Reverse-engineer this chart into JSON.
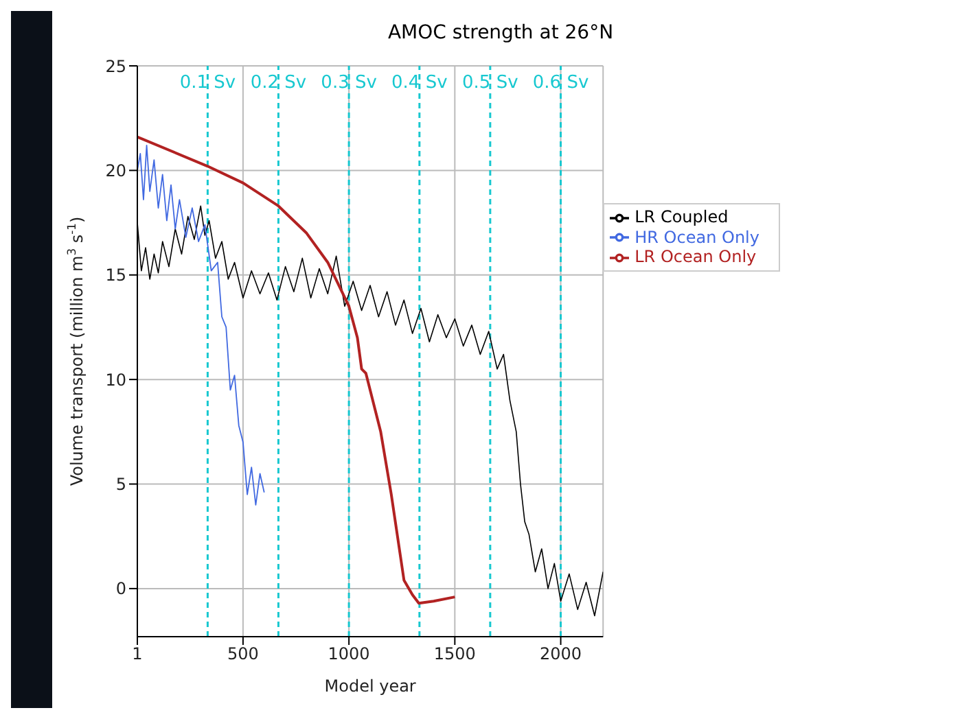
{
  "chart_data": {
    "type": "line",
    "title": "AMOC strength at 26°N",
    "xlabel": "Model year",
    "ylabel": "Volume transport (million m$^{3}$ s$^{-1}$)",
    "xlim": [
      1,
      2200
    ],
    "xticks": [
      1,
      500,
      1000,
      1500,
      2000
    ],
    "ylim": [
      -2.3,
      25
    ],
    "yticks": [
      0,
      5,
      10,
      15,
      20,
      25
    ],
    "grid": true,
    "legend": "top right",
    "series": [
      {
        "name": "LR Coupled",
        "color": "#000000",
        "x": [
          1,
          20,
          40,
          60,
          80,
          100,
          120,
          150,
          180,
          210,
          240,
          270,
          300,
          320,
          340,
          370,
          400,
          430,
          460,
          500,
          540,
          580,
          620,
          660,
          700,
          740,
          780,
          820,
          860,
          900,
          940,
          980,
          1020,
          1060,
          1100,
          1140,
          1180,
          1220,
          1260,
          1300,
          1340,
          1380,
          1420,
          1460,
          1500,
          1540,
          1580,
          1620,
          1660,
          1700,
          1730,
          1760,
          1790,
          1810,
          1830,
          1850,
          1880,
          1910,
          1940,
          1970,
          2000,
          2040,
          2080,
          2120,
          2160,
          2200
        ],
        "values": [
          17.5,
          15.2,
          16.3,
          14.8,
          16.0,
          15.1,
          16.6,
          15.4,
          17.2,
          16.0,
          17.8,
          16.7,
          18.3,
          16.9,
          17.6,
          15.8,
          16.6,
          14.8,
          15.6,
          13.9,
          15.2,
          14.1,
          15.1,
          13.8,
          15.4,
          14.2,
          15.8,
          13.9,
          15.3,
          14.1,
          15.9,
          13.5,
          14.7,
          13.3,
          14.5,
          13.0,
          14.2,
          12.6,
          13.8,
          12.2,
          13.4,
          11.8,
          13.1,
          12.0,
          12.9,
          11.6,
          12.6,
          11.2,
          12.3,
          10.5,
          11.2,
          9.0,
          7.5,
          5.0,
          3.2,
          2.6,
          0.8,
          1.9,
          0.0,
          1.2,
          -0.6,
          0.7,
          -1.0,
          0.3,
          -1.3,
          0.8
        ]
      },
      {
        "name": "HR Ocean Only",
        "color": "#4169e1",
        "x": [
          1,
          15,
          30,
          45,
          60,
          80,
          100,
          120,
          140,
          160,
          180,
          200,
          230,
          260,
          290,
          320,
          350,
          380,
          400,
          420,
          440,
          460,
          480,
          500,
          520,
          540,
          560,
          580,
          600
        ],
        "values": [
          20.0,
          20.8,
          18.6,
          21.2,
          19.0,
          20.5,
          18.2,
          19.8,
          17.6,
          19.3,
          17.2,
          18.6,
          16.8,
          18.2,
          16.6,
          17.4,
          15.2,
          15.6,
          13.0,
          12.5,
          9.5,
          10.2,
          7.8,
          7.0,
          4.5,
          5.8,
          4.0,
          5.5,
          4.6
        ]
      },
      {
        "name": "LR Ocean Only",
        "color": "#b22222",
        "x": [
          1,
          333,
          500,
          667,
          800,
          900,
          1000,
          1040,
          1060,
          1080,
          1150,
          1200,
          1260,
          1300,
          1330,
          1400,
          1500
        ],
        "values": [
          21.6,
          20.2,
          19.4,
          18.3,
          17.0,
          15.6,
          13.5,
          12.0,
          10.5,
          10.3,
          7.5,
          4.5,
          0.4,
          -0.3,
          -0.7,
          -0.6,
          -0.4
        ]
      }
    ],
    "ref_lines": [
      {
        "axis": "x",
        "value": 333,
        "label": "0.1 Sv",
        "color": "#17c8d0",
        "line_style": "dashed"
      },
      {
        "axis": "x",
        "value": 667,
        "label": "0.2 Sv",
        "color": "#17c8d0",
        "line_style": "dashed"
      },
      {
        "axis": "x",
        "value": 1000,
        "label": "0.3 Sv",
        "color": "#17c8d0",
        "line_style": "dashed"
      },
      {
        "axis": "x",
        "value": 1333,
        "label": "0.4 Sv",
        "color": "#17c8d0",
        "line_style": "dashed"
      },
      {
        "axis": "x",
        "value": 1667,
        "label": "0.5 Sv",
        "color": "#17c8d0",
        "line_style": "dashed"
      },
      {
        "axis": "x",
        "value": 2000,
        "label": "0.6 Sv",
        "color": "#17c8d0",
        "line_style": "dashed"
      }
    ]
  }
}
